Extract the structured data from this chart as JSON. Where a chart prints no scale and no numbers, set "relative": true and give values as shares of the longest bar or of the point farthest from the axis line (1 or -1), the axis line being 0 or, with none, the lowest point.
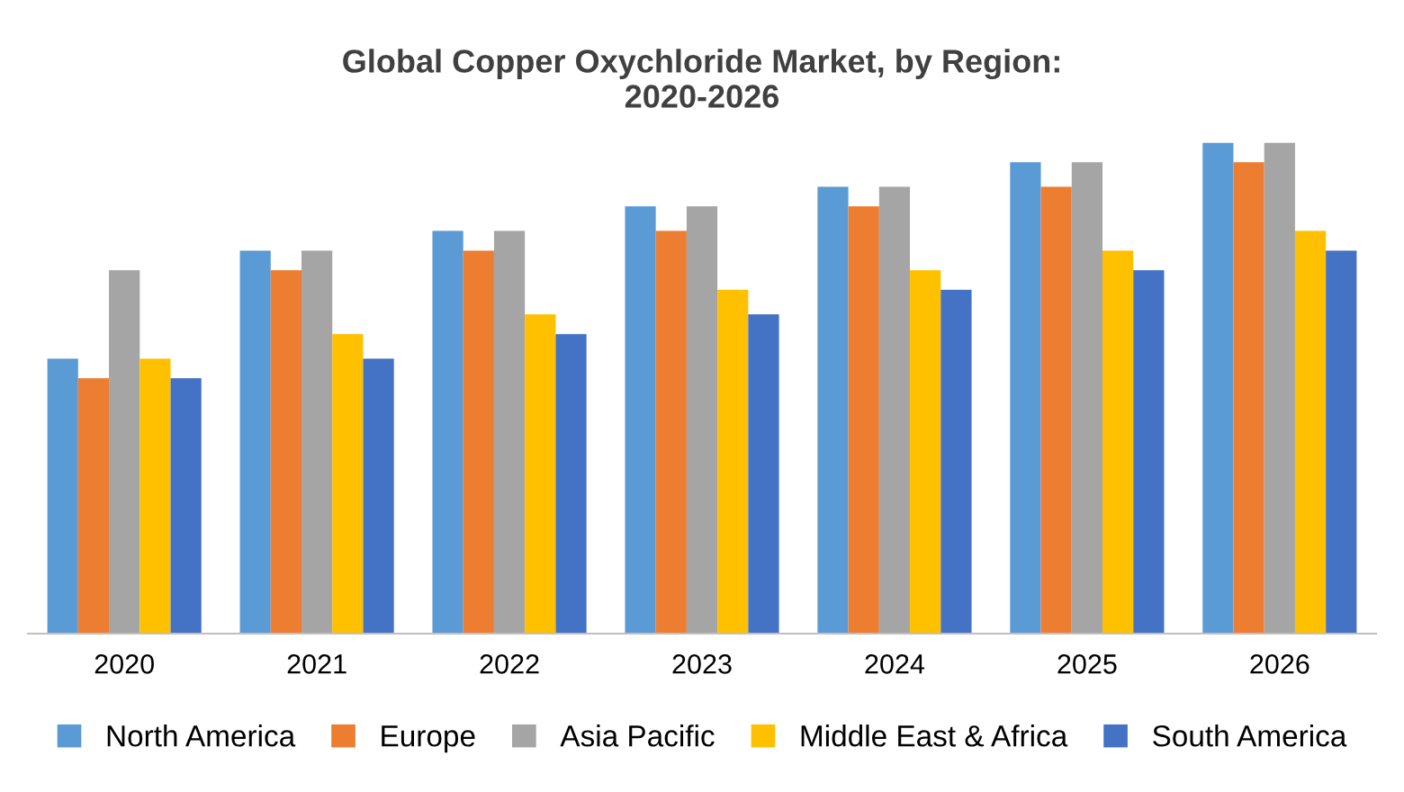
{
  "chart_data": {
    "type": "bar",
    "title": "Global Copper Oxychloride Market, by Region:\n2020-2026",
    "categories": [
      "2020",
      "2021",
      "2022",
      "2023",
      "2024",
      "2025",
      "2026"
    ],
    "relative": true,
    "legend": "bottom",
    "grid": false,
    "series": [
      {
        "name": "North America",
        "color": "#5b9bd5",
        "values": [
          0.56,
          0.78,
          0.82,
          0.87,
          0.91,
          0.96,
          1
        ]
      },
      {
        "name": "Europe",
        "color": "#ed7d31",
        "values": [
          0.52,
          0.74,
          0.78,
          0.82,
          0.87,
          0.91,
          0.96
        ]
      },
      {
        "name": "Asia Pacific",
        "color": "#a5a5a5",
        "values": [
          0.74,
          0.78,
          0.82,
          0.87,
          0.91,
          0.96,
          1
        ]
      },
      {
        "name": "Middle East & Africa",
        "color": "#ffc000",
        "values": [
          0.56,
          0.61,
          0.65,
          0.7,
          0.74,
          0.78,
          0.82
        ]
      },
      {
        "name": "South America",
        "color": "#4472c4",
        "values": [
          0.52,
          0.56,
          0.61,
          0.65,
          0.7,
          0.74,
          0.78
        ]
      }
    ]
  }
}
